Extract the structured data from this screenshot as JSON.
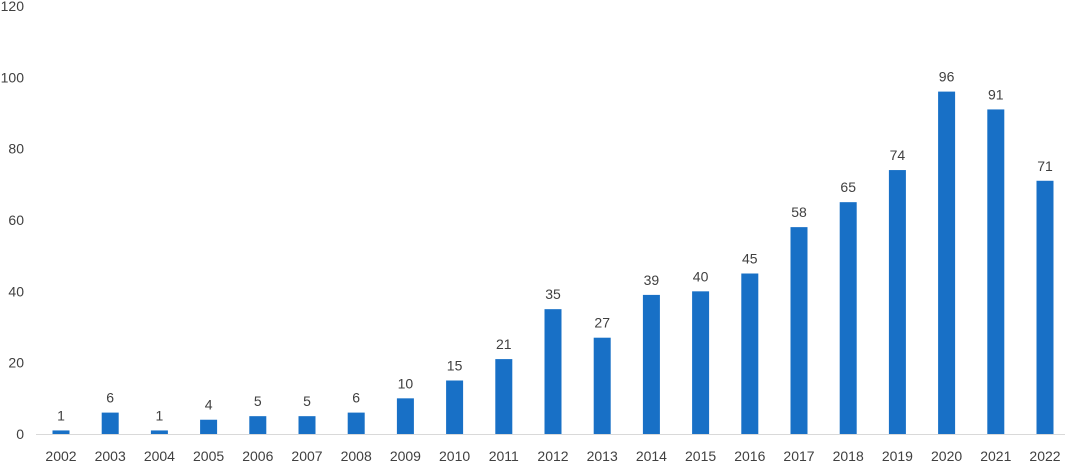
{
  "chart_data": {
    "type": "bar",
    "title": "",
    "xlabel": "",
    "ylabel": "",
    "categories": [
      "2002",
      "2003",
      "2004",
      "2005",
      "2006",
      "2007",
      "2008",
      "2009",
      "2010",
      "2011",
      "2012",
      "2013",
      "2014",
      "2015",
      "2016",
      "2017",
      "2018",
      "2019",
      "2020",
      "2021",
      "2022"
    ],
    "values": [
      1,
      6,
      1,
      4,
      5,
      5,
      6,
      10,
      15,
      21,
      35,
      27,
      39,
      40,
      45,
      58,
      65,
      74,
      96,
      91,
      71
    ],
    "ylim": [
      0,
      120
    ],
    "yticks": [
      0,
      20,
      40,
      60,
      80,
      100,
      120
    ],
    "grid": false,
    "legend": "none",
    "data_labels": true,
    "bar_color": "#1870C6",
    "axis_color": "#D9D9D9",
    "text_color": "#404040"
  }
}
